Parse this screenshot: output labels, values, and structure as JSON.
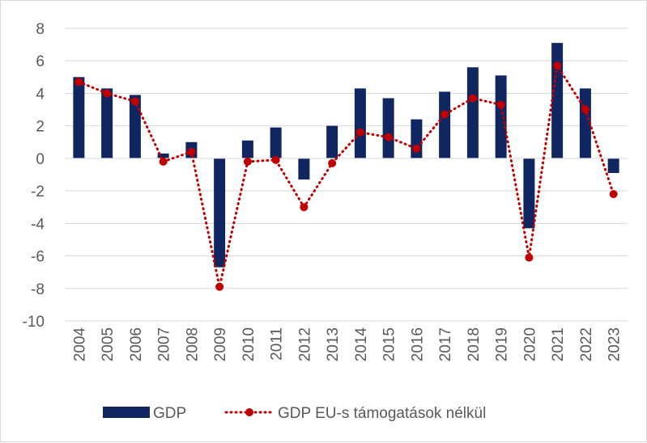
{
  "chart_data": {
    "type": "bar+line",
    "title": "",
    "xlabel": "",
    "ylabel": "",
    "ylim": [
      -10,
      8
    ],
    "y_ticks": [
      8,
      6,
      4,
      2,
      0,
      -2,
      -4,
      -6,
      -8,
      -10
    ],
    "gridlines": true,
    "legend_position": "bottom",
    "categories": [
      "2004",
      "2005",
      "2006",
      "2007",
      "2008",
      "2009",
      "2010",
      "2011",
      "2012",
      "2013",
      "2014",
      "2015",
      "2016",
      "2017",
      "2018",
      "2019",
      "2020",
      "2021",
      "2022",
      "2023"
    ],
    "series": [
      {
        "name": "GDP",
        "kind": "bar",
        "color": "#0f2660",
        "values": [
          5.0,
          4.3,
          3.9,
          0.3,
          1.0,
          -6.7,
          1.1,
          1.9,
          -1.3,
          2.0,
          4.3,
          3.7,
          2.4,
          4.1,
          5.6,
          5.1,
          -4.3,
          7.1,
          4.3,
          -0.9
        ]
      },
      {
        "name": "GDP EU-s támogatások nélkül",
        "kind": "line",
        "style": "dotted-with-markers",
        "color": "#c00000",
        "values": [
          4.7,
          4.0,
          3.5,
          -0.2,
          0.4,
          -7.9,
          -0.2,
          -0.1,
          -3.0,
          -0.3,
          1.6,
          1.3,
          0.6,
          2.7,
          3.7,
          3.3,
          -6.1,
          5.7,
          3.0,
          -2.2
        ]
      }
    ]
  }
}
